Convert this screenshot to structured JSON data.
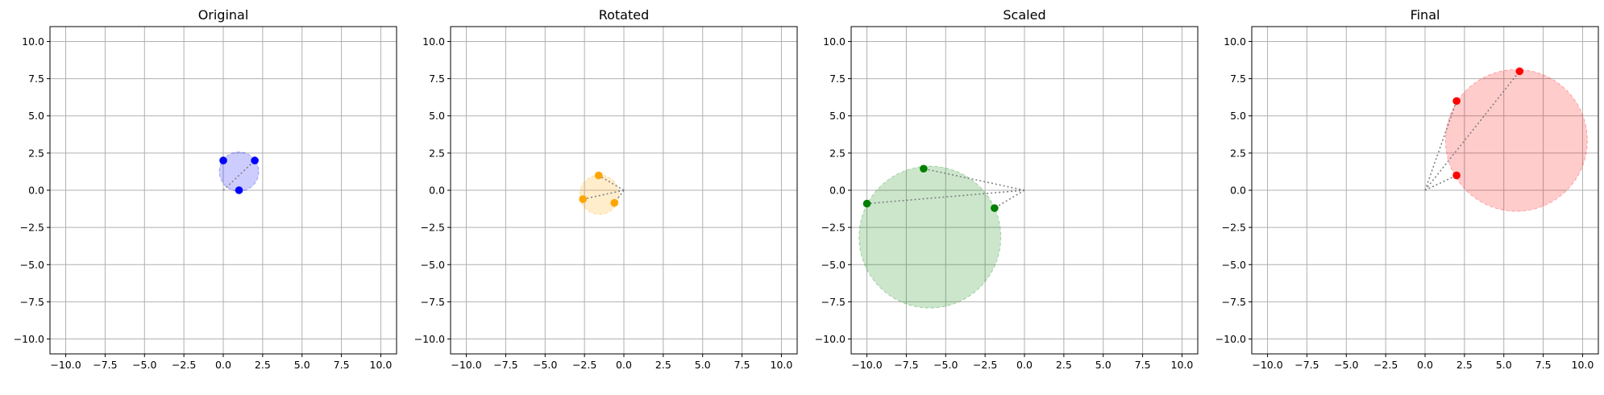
{
  "chart_data": [
    {
      "type": "scatter",
      "title": "Original",
      "xlim": [
        -11,
        11
      ],
      "ylim": [
        -11,
        11
      ],
      "xticks": [
        -10,
        -7.5,
        -5,
        -2.5,
        0,
        2.5,
        5,
        7.5,
        10
      ],
      "yticks": [
        -10,
        -7.5,
        -5,
        -2.5,
        0,
        2.5,
        5,
        7.5,
        10
      ],
      "xtick_labels": [
        "−10.0",
        "−7.5",
        "−5.0",
        "−2.5",
        "0.0",
        "2.5",
        "5.0",
        "7.5",
        "10.0"
      ],
      "ytick_labels": [
        "−10.0",
        "−7.5",
        "−5.0",
        "−2.5",
        "0.0",
        "2.5",
        "5.0",
        "7.5",
        "10.0"
      ],
      "grid": true,
      "points": [
        {
          "x": 0,
          "y": 2
        },
        {
          "x": 2,
          "y": 2
        },
        {
          "x": 1,
          "y": 0
        }
      ],
      "origin_lines": [
        1
      ],
      "circle": {
        "cx": 1.0,
        "cy": 1.25,
        "r": 1.25
      },
      "point_color": "#0000ff",
      "fill_color": "#0000ff"
    },
    {
      "type": "scatter",
      "title": "Rotated",
      "xlim": [
        -11,
        11
      ],
      "ylim": [
        -11,
        11
      ],
      "xticks": [
        -10,
        -7.5,
        -5,
        -2.5,
        0,
        2.5,
        5,
        7.5,
        10
      ],
      "yticks": [
        -10,
        -7.5,
        -5,
        -2.5,
        0,
        2.5,
        5,
        7.5,
        10
      ],
      "xtick_labels": [
        "−10.0",
        "−7.5",
        "−5.0",
        "−2.5",
        "0.0",
        "2.5",
        "5.0",
        "7.5",
        "10.0"
      ],
      "ytick_labels": [
        "−10.0",
        "−7.5",
        "−5.0",
        "−2.5",
        "0.0",
        "2.5",
        "5.0",
        "7.5",
        "10.0"
      ],
      "grid": true,
      "points": [
        {
          "x": -1.6,
          "y": 1.0
        },
        {
          "x": -2.6,
          "y": -0.6
        },
        {
          "x": -0.6,
          "y": -0.85
        }
      ],
      "origin_lines": [
        0,
        1,
        2
      ],
      "circle": {
        "cx": -1.55,
        "cy": -0.3,
        "r": 1.25
      },
      "point_color": "#ffa500",
      "fill_color": "#ffa500"
    },
    {
      "type": "scatter",
      "title": "Scaled",
      "xlim": [
        -11,
        11
      ],
      "ylim": [
        -11,
        11
      ],
      "xticks": [
        -10,
        -7.5,
        -5,
        -2.5,
        0,
        2.5,
        5,
        7.5,
        10
      ],
      "yticks": [
        -10,
        -7.5,
        -5,
        -2.5,
        0,
        2.5,
        5,
        7.5,
        10
      ],
      "xtick_labels": [
        "−10.0",
        "−7.5",
        "−5.0",
        "−2.5",
        "0.0",
        "2.5",
        "5.0",
        "7.5",
        "10.0"
      ],
      "ytick_labels": [
        "−10.0",
        "−7.5",
        "−5.0",
        "−2.5",
        "0.0",
        "2.5",
        "5.0",
        "7.5",
        "10.0"
      ],
      "grid": true,
      "points": [
        {
          "x": -6.4,
          "y": 1.45
        },
        {
          "x": -10.0,
          "y": -0.9
        },
        {
          "x": -1.9,
          "y": -1.2
        }
      ],
      "origin_lines": [
        0,
        1,
        2
      ],
      "circle": {
        "cx": -6.0,
        "cy": -3.15,
        "r": 4.5
      },
      "point_color": "#008000",
      "fill_color": "#008000"
    },
    {
      "type": "scatter",
      "title": "Final",
      "xlim": [
        -11,
        11
      ],
      "ylim": [
        -11,
        11
      ],
      "xticks": [
        -10,
        -7.5,
        -5,
        -2.5,
        0,
        2.5,
        5,
        7.5,
        10
      ],
      "yticks": [
        -10,
        -7.5,
        -5,
        -2.5,
        0,
        2.5,
        5,
        7.5,
        10
      ],
      "xtick_labels": [
        "−10.0",
        "−7.5",
        "−5.0",
        "−2.5",
        "0.0",
        "2.5",
        "5.0",
        "7.5",
        "10.0"
      ],
      "ytick_labels": [
        "−10.0",
        "−7.5",
        "−5.0",
        "−2.5",
        "0.0",
        "2.5",
        "5.0",
        "7.5",
        "10.0"
      ],
      "grid": true,
      "points": [
        {
          "x": 2,
          "y": 6
        },
        {
          "x": 6,
          "y": 8
        },
        {
          "x": 2,
          "y": 1
        }
      ],
      "origin_lines": [
        0,
        1,
        2
      ],
      "circle": {
        "cx": 5.8,
        "cy": 3.35,
        "r": 4.5
      },
      "point_color": "#ff0000",
      "fill_color": "#ff0000"
    }
  ]
}
